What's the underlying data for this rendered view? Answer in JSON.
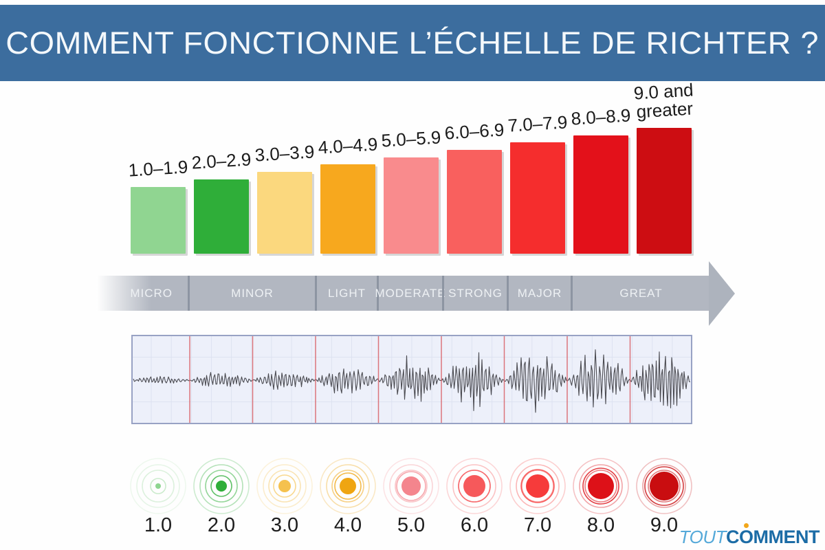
{
  "header": {
    "title": "COMMENT FONCTIONNE L’ÉCHELLE DE RICHTER ?",
    "bg_color": "#3c6d9e",
    "text_color": "#f4f8fb"
  },
  "chart_data": {
    "type": "bar",
    "title": "",
    "xlabel": "",
    "ylabel": "",
    "categories": [
      "1.0–1.9",
      "2.0–2.9",
      "3.0–3.9",
      "4.0–4.9",
      "5.0–5.9",
      "6.0–6.9",
      "7.0–7.9",
      "8.0–8.9",
      "9.0 and greater"
    ],
    "values": [
      97,
      108,
      119,
      130,
      140,
      151,
      162,
      172,
      183
    ],
    "value_note": "illustrative bar heights in px, increasing with magnitude class",
    "colors": [
      "#90d591",
      "#2fae39",
      "#fbd87e",
      "#f7a81e",
      "#f98b8d",
      "#f9605e",
      "#f52d2d",
      "#e3111a",
      "#cd0d12"
    ],
    "grid": "off",
    "legend": "none"
  },
  "intensity_scale": {
    "labels": [
      "MICRO",
      "MINOR",
      "LIGHT",
      "MODERATE",
      "STRONG",
      "MAJOR",
      "GREAT"
    ],
    "arrow_color": "#b2b7c1",
    "divider_color": "#8d95a2",
    "text_color": "#eef1f4"
  },
  "seismogram": {
    "segment_amplitudes": [
      5,
      13,
      15,
      25,
      38,
      44,
      47,
      52,
      56
    ],
    "panel_bg": "#edf0fa",
    "border_color": "#98a2c4",
    "grid_color": "#dde2f1",
    "divider_color": "#d95f66",
    "trace_color": "#4a4a50"
  },
  "epicenters": {
    "labels": [
      "1.0",
      "2.0",
      "3.0",
      "4.0",
      "5.0",
      "6.0",
      "7.0",
      "8.0",
      "9.0"
    ],
    "dot_radii": [
      4,
      8,
      9,
      12,
      14,
      16,
      17,
      19,
      21
    ],
    "colors": [
      "#8fd591",
      "#2fae39",
      "#f5c14e",
      "#efa512",
      "#f4858d",
      "#f6595b",
      "#f63b3b",
      "#dd1118",
      "#c90d10"
    ],
    "ring_strength": [
      0.5,
      0.85,
      0.7,
      0.85,
      0.8,
      0.85,
      0.85,
      0.9,
      0.9
    ]
  },
  "footer_logo": {
    "light": "TOUT",
    "bold": "COMMENT",
    "light_color": "#55a9d9",
    "bold_color": "#1c6ca6",
    "dot_color": "#f2a71b"
  }
}
